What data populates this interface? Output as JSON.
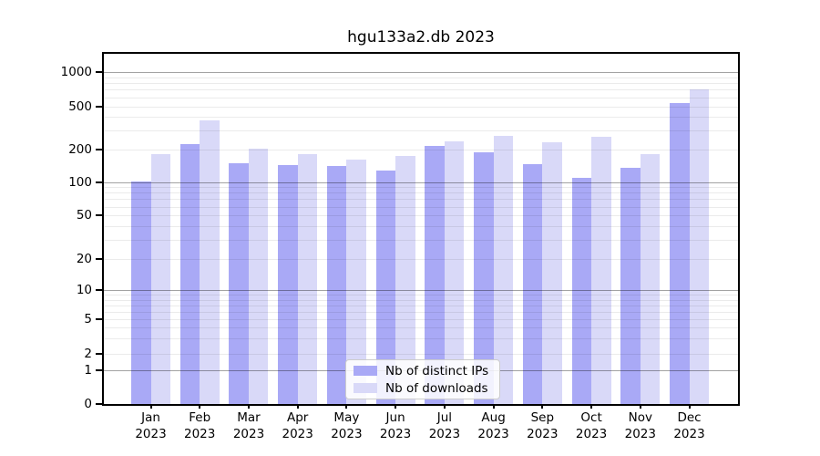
{
  "title": "hgu133a2.db 2023",
  "colors": {
    "ips": "#a9a9f6",
    "downloads": "#d9d9f8",
    "grid_major": "rgba(0,0,0,0.36)",
    "grid_minor": "rgba(0,0,0,0.08)",
    "axis": "#000000"
  },
  "legend": {
    "items": [
      {
        "label": "Nb of distinct IPs",
        "series": "ips"
      },
      {
        "label": "Nb of downloads",
        "series": "downloads"
      }
    ]
  },
  "y_axis": {
    "tick_labels": [
      "0",
      "1",
      "2",
      "5",
      "10",
      "20",
      "50",
      "100",
      "200",
      "500",
      "1000"
    ]
  },
  "x_axis": {
    "year": "2023"
  },
  "chart_data": {
    "type": "bar",
    "title": "hgu133a2.db 2023",
    "categories": [
      "Jan",
      "Feb",
      "Mar",
      "Apr",
      "May",
      "Jun",
      "Jul",
      "Aug",
      "Sep",
      "Oct",
      "Nov",
      "Dec"
    ],
    "year": "2023",
    "series": [
      {
        "name": "Nb of distinct IPs",
        "values": [
          102,
          225,
          150,
          144,
          140,
          128,
          215,
          190,
          148,
          110,
          137,
          540
        ]
      },
      {
        "name": "Nb of downloads",
        "values": [
          180,
          375,
          203,
          180,
          161,
          174,
          238,
          270,
          233,
          265,
          180,
          700
        ]
      }
    ],
    "xlabel": "",
    "ylabel": "",
    "yscale": "symlog",
    "yticks": [
      0,
      1,
      2,
      5,
      10,
      20,
      50,
      100,
      200,
      500,
      1000
    ],
    "grid": true,
    "legend_position": "bottom-center-inside"
  }
}
